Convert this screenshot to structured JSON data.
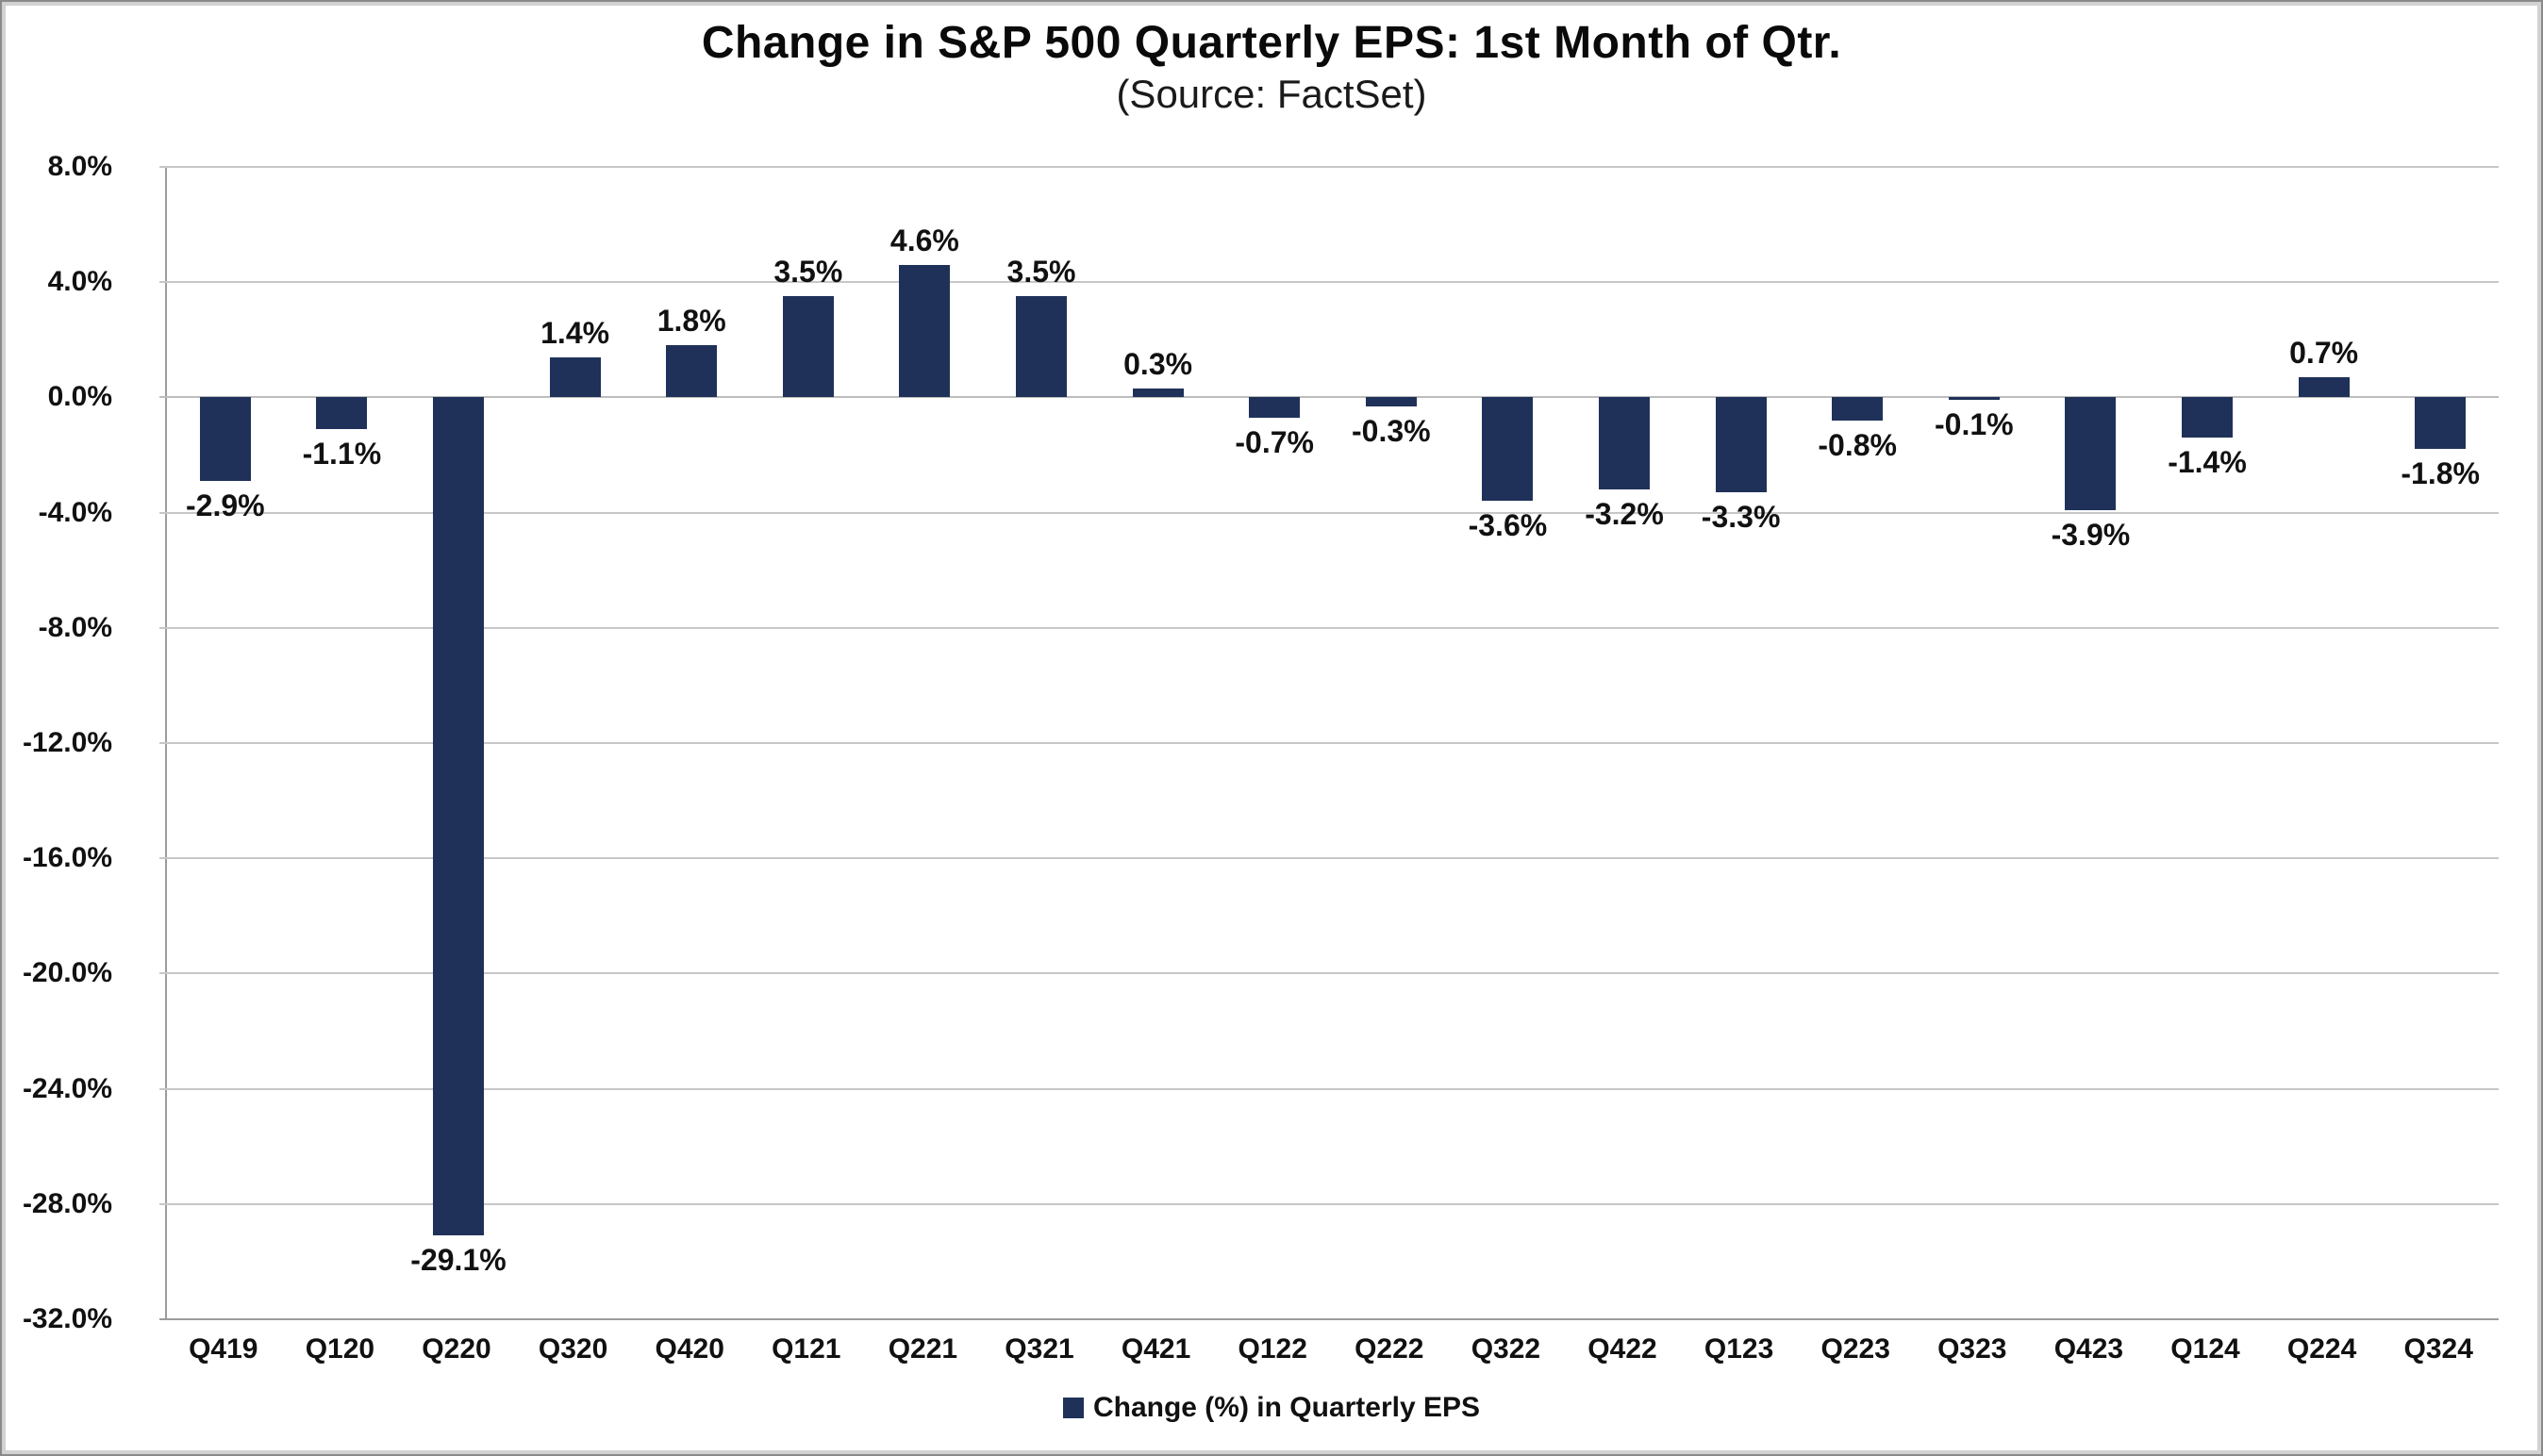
{
  "header": {
    "title": "Change in S&P 500 Quarterly EPS: 1st Month of Qtr.",
    "subtitle": "(Source: FactSet)"
  },
  "legend": {
    "label": "Change (%) in Quarterly EPS",
    "marker_icon": "legend-square-icon",
    "marker_color": "#1F3159"
  },
  "colors": {
    "bar": "#1F3159",
    "gridline": "#c7c7c7",
    "axis": "#9c9c9c",
    "text": "#111111"
  },
  "chart_data": {
    "type": "bar",
    "title": "Change in S&P 500 Quarterly EPS: 1st Month of Qtr.",
    "subtitle": "(Source: FactSet)",
    "xlabel": "",
    "ylabel": "",
    "categories": [
      "Q419",
      "Q120",
      "Q220",
      "Q320",
      "Q420",
      "Q121",
      "Q221",
      "Q321",
      "Q421",
      "Q122",
      "Q222",
      "Q322",
      "Q422",
      "Q123",
      "Q223",
      "Q323",
      "Q423",
      "Q124",
      "Q224",
      "Q324"
    ],
    "series": [
      {
        "name": "Change (%) in Quarterly EPS",
        "values": [
          -2.9,
          -1.1,
          -29.1,
          1.4,
          1.8,
          3.5,
          4.6,
          3.5,
          0.3,
          -0.7,
          -0.3,
          -3.6,
          -3.2,
          -3.3,
          -0.8,
          -0.1,
          -3.9,
          -1.4,
          0.7,
          -1.8
        ],
        "labels": [
          "-2.9%",
          "-1.1%",
          "-29.1%",
          "1.4%",
          "1.8%",
          "3.5%",
          "4.6%",
          "3.5%",
          "0.3%",
          "-0.7%",
          "-0.3%",
          "-3.6%",
          "-3.2%",
          "-3.3%",
          "-0.8%",
          "-0.1%",
          "-3.9%",
          "-1.4%",
          "0.7%",
          "-1.8%"
        ]
      }
    ],
    "ylim": [
      -32,
      8
    ],
    "ytick_step": 4,
    "ytick_labels": [
      "8.0%",
      "4.0%",
      "0.0%",
      "-4.0%",
      "-8.0%",
      "-12.0%",
      "-16.0%",
      "-20.0%",
      "-24.0%",
      "-28.0%",
      "-32.0%"
    ],
    "grid": true,
    "legend_position": "bottom",
    "data_labels": true
  }
}
